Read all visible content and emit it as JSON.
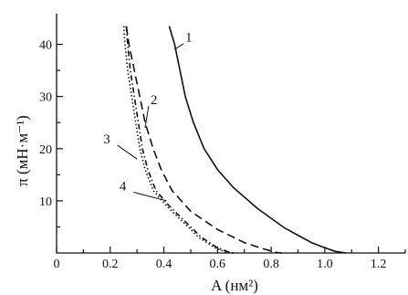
{
  "chart_data": {
    "type": "line",
    "xlabel": "A (нм²)",
    "ylabel": "π (мН·м⁻¹)",
    "xlim": [
      0,
      1.3
    ],
    "ylim": [
      0,
      45
    ],
    "xticks": [
      {
        "value": 0,
        "label": "0"
      },
      {
        "value": 0.2,
        "label": "0.2"
      },
      {
        "value": 0.4,
        "label": "0.4"
      },
      {
        "value": 0.6,
        "label": "0.6"
      },
      {
        "value": 0.8,
        "label": "0.8"
      },
      {
        "value": 1.0,
        "label": "1.0"
      },
      {
        "value": 1.2,
        "label": "1.2"
      }
    ],
    "yticks": [
      {
        "value": 10,
        "label": "10"
      },
      {
        "value": 20,
        "label": "20"
      },
      {
        "value": 30,
        "label": "30"
      },
      {
        "value": 40,
        "label": "40"
      }
    ],
    "grid": false,
    "series": [
      {
        "name": "1",
        "dash": "solid",
        "label_at": [
          0.48,
          40.5
        ],
        "label_point": [
          0.44,
          39
        ],
        "points": [
          [
            0.42,
            43.5
          ],
          [
            0.44,
            40
          ],
          [
            0.46,
            35
          ],
          [
            0.48,
            30
          ],
          [
            0.51,
            25
          ],
          [
            0.55,
            20
          ],
          [
            0.6,
            16
          ],
          [
            0.66,
            12.5
          ],
          [
            0.75,
            8.5
          ],
          [
            0.85,
            4.8
          ],
          [
            0.95,
            2
          ],
          [
            1.0,
            1
          ],
          [
            1.04,
            0.3
          ],
          [
            1.08,
            0
          ]
        ]
      },
      {
        "name": "2",
        "dash": "long-dash",
        "label_at": [
          0.35,
          28.5
        ],
        "label_point": [
          0.33,
          24
        ],
        "points": [
          [
            0.26,
            43.5
          ],
          [
            0.27,
            40
          ],
          [
            0.29,
            35
          ],
          [
            0.31,
            30
          ],
          [
            0.33,
            25
          ],
          [
            0.36,
            20
          ],
          [
            0.39,
            16
          ],
          [
            0.43,
            12
          ],
          [
            0.5,
            8
          ],
          [
            0.6,
            4.5
          ],
          [
            0.7,
            2
          ],
          [
            0.77,
            0.8
          ],
          [
            0.82,
            0.1
          ],
          [
            0.84,
            0
          ]
        ]
      },
      {
        "name": "3",
        "dash": "dash-dot",
        "label_at": [
          0.2,
          21
        ],
        "label_point": [
          0.3,
          18
        ],
        "points": [
          [
            0.26,
            43.5
          ],
          [
            0.265,
            40
          ],
          [
            0.275,
            35
          ],
          [
            0.29,
            30
          ],
          [
            0.305,
            25
          ],
          [
            0.32,
            20
          ],
          [
            0.34,
            16
          ],
          [
            0.37,
            12
          ],
          [
            0.42,
            9
          ],
          [
            0.48,
            6
          ],
          [
            0.54,
            3
          ],
          [
            0.6,
            1
          ],
          [
            0.64,
            0.2
          ],
          [
            0.66,
            0
          ]
        ]
      },
      {
        "name": "4",
        "dash": "dotted",
        "label_at": [
          0.26,
          12
        ],
        "label_point": [
          0.41,
          10
        ],
        "points": [
          [
            0.25,
            43.5
          ],
          [
            0.255,
            40
          ],
          [
            0.265,
            35
          ],
          [
            0.28,
            30
          ],
          [
            0.295,
            25
          ],
          [
            0.31,
            20
          ],
          [
            0.33,
            16
          ],
          [
            0.36,
            12
          ],
          [
            0.41,
            9
          ],
          [
            0.47,
            6
          ],
          [
            0.53,
            3
          ],
          [
            0.59,
            1
          ],
          [
            0.63,
            0.2
          ],
          [
            0.66,
            0
          ]
        ]
      }
    ]
  }
}
